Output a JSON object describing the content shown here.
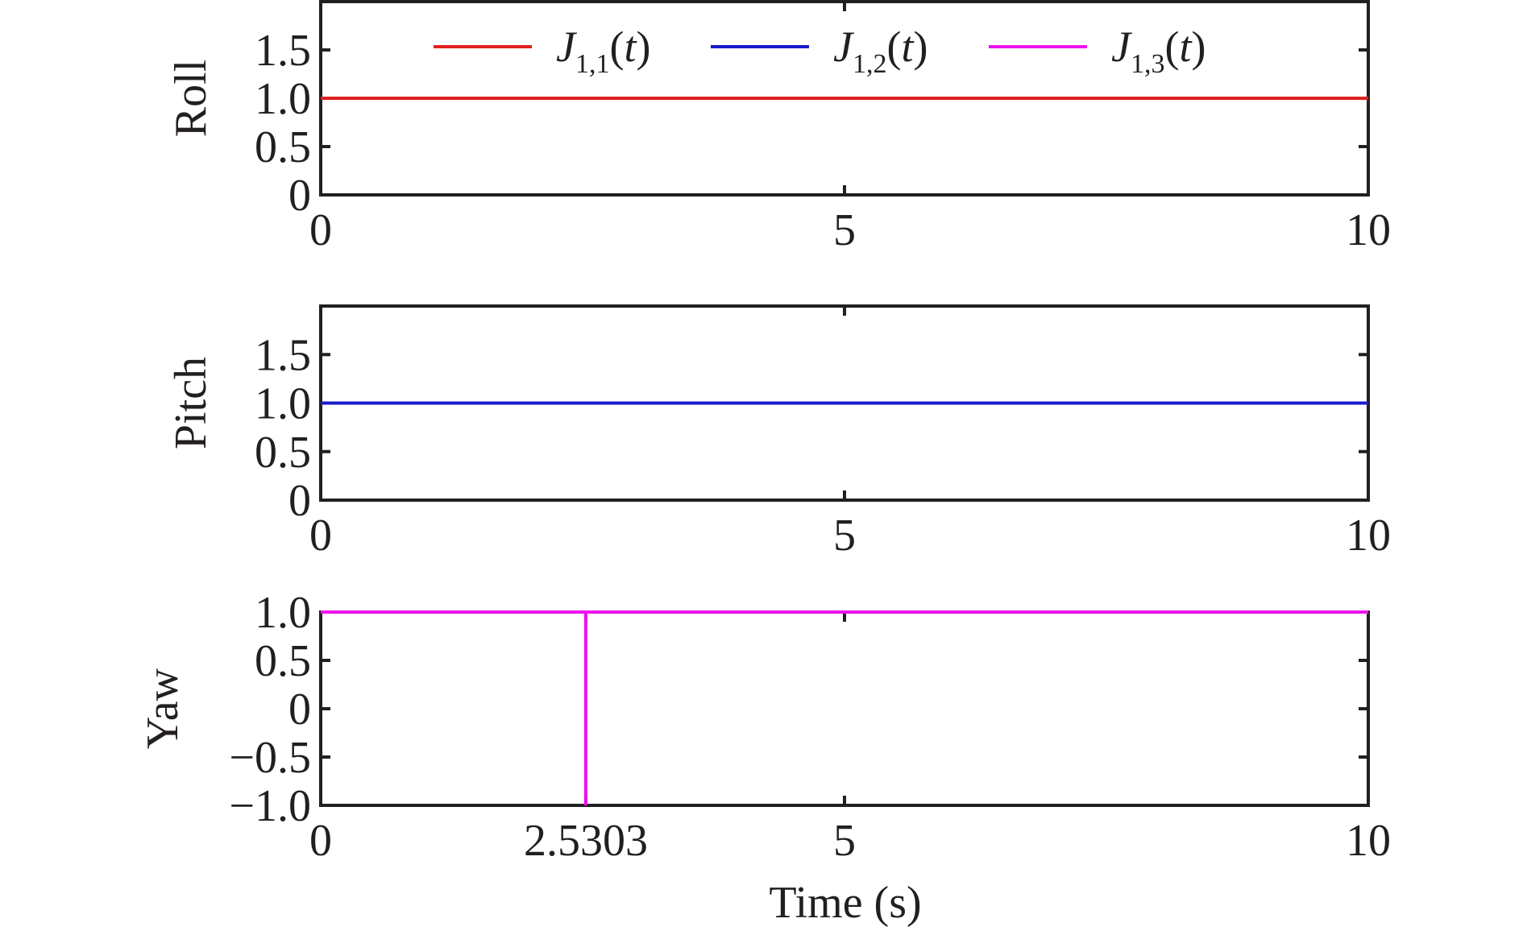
{
  "chart_data": [
    {
      "type": "line",
      "name": "roll",
      "ylabel": "Roll",
      "xlabel": "",
      "xlim": [
        0,
        10
      ],
      "ylim": [
        0,
        2
      ],
      "xticks": [
        0,
        5,
        10
      ],
      "xtick_labels": [
        "0",
        "5",
        "10"
      ],
      "yticks": [
        0,
        0.5,
        1.0,
        1.5
      ],
      "ytick_labels": [
        "0",
        "0.5",
        "1.0",
        "1.5"
      ],
      "grid": false,
      "legend": {
        "placement": "top",
        "entries": [
          {
            "label": "J",
            "subscript": "1,1",
            "suffix": "(t)",
            "color": "#e02020"
          },
          {
            "label": "J",
            "subscript": "1,2",
            "suffix": "(t)",
            "color": "#1a1acc"
          },
          {
            "label": "J",
            "subscript": "1,3",
            "suffix": "(t)",
            "color": "#ee11ee"
          }
        ]
      },
      "series": [
        {
          "color": "#e02020",
          "x": [
            0,
            10
          ],
          "y": [
            1,
            1
          ]
        }
      ]
    },
    {
      "type": "line",
      "name": "pitch",
      "ylabel": "Pitch",
      "xlabel": "",
      "xlim": [
        0,
        10
      ],
      "ylim": [
        0,
        2
      ],
      "xticks": [
        0,
        5,
        10
      ],
      "xtick_labels": [
        "0",
        "5",
        "10"
      ],
      "yticks": [
        0,
        0.5,
        1.0,
        1.5
      ],
      "ytick_labels": [
        "0",
        "0.5",
        "1.0",
        "1.5"
      ],
      "grid": false,
      "series": [
        {
          "color": "#1a1acc",
          "x": [
            0,
            10
          ],
          "y": [
            1,
            1
          ]
        }
      ]
    },
    {
      "type": "line",
      "name": "yaw",
      "ylabel": "Yaw",
      "xlabel": "Time (s)",
      "xlim": [
        0,
        10
      ],
      "ylim": [
        -1,
        1
      ],
      "xticks": [
        0,
        2.5303,
        5,
        10
      ],
      "xtick_labels": [
        "0",
        "2.5303",
        "5",
        "10"
      ],
      "yticks": [
        -1,
        -0.5,
        0,
        0.5,
        1.0
      ],
      "ytick_labels": [
        "−1.0",
        "−0.5",
        "0",
        "0.5",
        "1.0"
      ],
      "grid": false,
      "series": [
        {
          "color": "#ee11ee",
          "x": [
            0,
            2.5303,
            2.5303,
            2.5303,
            2.5303,
            10
          ],
          "y": [
            1,
            1,
            -1,
            -1,
            1,
            1
          ]
        }
      ]
    }
  ]
}
